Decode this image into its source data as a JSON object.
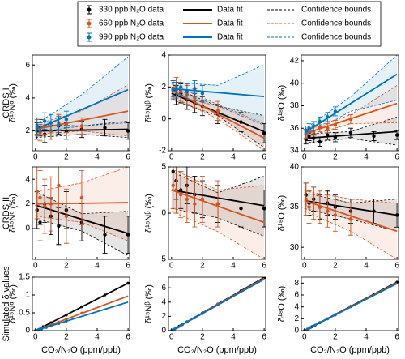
{
  "legend": [
    {
      "data_label": "330 ppb N₂O data",
      "fit_label": "Data fit",
      "bounds_label": "Confidence bounds",
      "color": "#000000"
    },
    {
      "data_label": "660 ppb N₂O data",
      "fit_label": "Data fit",
      "bounds_label": "Confidence bounds",
      "color": "#d95319"
    },
    {
      "data_label": "990 ppb N₂O data",
      "fit_label": "Data fit",
      "bounds_label": "Confidence bounds",
      "color": "#0072bd"
    }
  ],
  "row_labels": [
    "CRDS I",
    "CRDS II",
    "Simulated δ values"
  ],
  "chart_data": [
    {
      "type": "scatter",
      "ylabel": "δ¹⁵Nᵅ (‰)",
      "xlim": [
        -0.2,
        6.1
      ],
      "xticks": [
        0,
        2,
        4,
        6
      ],
      "ylim": [
        0.8,
        6.6
      ],
      "yticks": [
        2,
        4,
        6
      ],
      "fit_x": [
        0,
        6
      ],
      "band_x": [
        0,
        3,
        6
      ],
      "series": [
        {
          "color": "#000000",
          "x": [
            0.1,
            0.3,
            0.6,
            1,
            1.5,
            2,
            3,
            4.5,
            6
          ],
          "values": [
            2,
            2.2,
            1.8,
            2,
            2.3,
            2,
            2.1,
            2.2,
            2
          ],
          "errors": [
            0.5,
            0.5,
            0.5,
            0.5,
            0.5,
            0.5,
            0.5,
            0.5,
            0.5
          ],
          "fit_values": [
            2.0,
            2.1
          ],
          "band_lower": [
            1.6,
            1.8,
            1.6
          ],
          "band_upper": [
            2.4,
            2.3,
            2.6
          ]
        },
        {
          "color": "#d95319",
          "x": [
            0.1,
            0.3,
            0.6,
            1,
            1.5,
            2,
            3
          ],
          "values": [
            2.2,
            1.9,
            2.3,
            2,
            2.5,
            2.4,
            2.3
          ],
          "errors": [
            0.5,
            0.5,
            0.5,
            0.5,
            0.5,
            0.5,
            0.5
          ],
          "fit_values": [
            2.1,
            3.2
          ],
          "band_lower": [
            1.8,
            2.0,
            1.7
          ],
          "band_upper": [
            2.4,
            3.2,
            4.8
          ]
        },
        {
          "color": "#0072bd",
          "x": [
            0.1,
            0.3,
            0.6,
            1,
            1.5,
            2
          ],
          "values": [
            2.3,
            2.0,
            2.6,
            2.5,
            2.4,
            2.7
          ],
          "errors": [
            0.5,
            0.5,
            0.5,
            0.5,
            0.5,
            0.5
          ],
          "fit_values": [
            2.1,
            4.5
          ],
          "band_lower": [
            1.9,
            2.3,
            2.5
          ],
          "band_upper": [
            2.4,
            4.2,
            6.5
          ]
        }
      ]
    },
    {
      "type": "scatter",
      "ylabel": "δ¹⁵Nᵝ (‰)",
      "xlim": [
        -0.2,
        6.1
      ],
      "xticks": [
        0,
        2,
        4,
        6
      ],
      "ylim": [
        -2,
        4
      ],
      "yticks": [
        -2,
        0,
        2,
        4
      ],
      "fit_x": [
        0,
        6
      ],
      "band_x": [
        0,
        3,
        6
      ],
      "series": [
        {
          "color": "#000000",
          "x": [
            0.1,
            0.3,
            0.6,
            1,
            1.5,
            2,
            3,
            4.5,
            6
          ],
          "values": [
            1.8,
            1.5,
            1.6,
            1.2,
            1.0,
            0.8,
            0.3,
            -0.2,
            -0.9
          ],
          "errors": [
            0.6,
            0.6,
            0.6,
            0.6,
            0.6,
            0.6,
            0.6,
            0.6,
            0.6
          ],
          "fit_values": [
            1.6,
            -0.8
          ],
          "band_lower": [
            1.2,
            0.2,
            -1.8
          ],
          "band_upper": [
            2.0,
            0.8,
            0.2
          ]
        },
        {
          "color": "#d95319",
          "x": [
            0.1,
            0.3,
            0.6,
            1,
            1.5,
            2,
            3
          ],
          "values": [
            1.9,
            2.0,
            1.7,
            1.5,
            1.3,
            1.1,
            0.5
          ],
          "errors": [
            0.6,
            0.6,
            0.6,
            0.6,
            0.6,
            0.6,
            0.6
          ],
          "fit_values": [
            1.8,
            -1.2
          ],
          "band_lower": [
            1.4,
            0.0,
            -2.0
          ],
          "band_upper": [
            2.2,
            0.9,
            -0.3
          ]
        },
        {
          "color": "#0072bd",
          "x": [
            0.1,
            0.3,
            0.6,
            1,
            1.5,
            2
          ],
          "values": [
            1.9,
            1.8,
            2.0,
            1.7,
            1.9,
            1.6
          ],
          "errors": [
            0.5,
            0.5,
            0.5,
            0.5,
            0.5,
            0.5
          ],
          "fit_values": [
            1.9,
            1.4
          ],
          "band_lower": [
            1.5,
            0.8,
            -0.4
          ],
          "band_upper": [
            2.3,
            2.1,
            3.4
          ]
        }
      ]
    },
    {
      "type": "scatter",
      "ylabel": "δ¹⁸O (‰)",
      "xlim": [
        -0.2,
        6.1
      ],
      "xticks": [
        0,
        2,
        4,
        6
      ],
      "ylim": [
        34,
        42.5
      ],
      "yticks": [
        34,
        36,
        38,
        40,
        42
      ],
      "fit_x": [
        0,
        6
      ],
      "band_x": [
        0,
        3,
        6
      ],
      "series": [
        {
          "color": "#000000",
          "x": [
            0.1,
            0.3,
            0.6,
            1,
            1.5,
            2,
            3,
            4.5,
            6
          ],
          "values": [
            35,
            35.3,
            35.1,
            34.8,
            35.4,
            35.2,
            35.6,
            35.3,
            35.4
          ],
          "errors": [
            0.4,
            0.4,
            0.4,
            0.4,
            0.4,
            0.4,
            0.4,
            0.4,
            0.4
          ],
          "fit_values": [
            35.1,
            35.7
          ],
          "band_lower": [
            34.7,
            35.1,
            34.5
          ],
          "band_upper": [
            35.5,
            35.7,
            37.0
          ]
        },
        {
          "color": "#d95319",
          "x": [
            0.1,
            0.3,
            0.6,
            1,
            1.5,
            2,
            3
          ],
          "values": [
            35.5,
            35.8,
            35.7,
            36.1,
            36.0,
            36.3,
            36.8
          ],
          "errors": [
            0.4,
            0.4,
            0.4,
            0.4,
            0.4,
            0.4,
            0.4
          ],
          "fit_values": [
            35.5,
            38.2
          ],
          "band_lower": [
            35.2,
            36.4,
            36.5
          ],
          "band_upper": [
            35.8,
            37.2,
            39.8
          ]
        },
        {
          "color": "#0072bd",
          "x": [
            0.1,
            0.3,
            0.6,
            1,
            1.5,
            2
          ],
          "values": [
            35.8,
            36,
            36.2,
            36.6,
            37,
            37.5
          ],
          "errors": [
            0.4,
            0.4,
            0.4,
            0.4,
            0.4,
            0.4
          ],
          "fit_values": [
            35.6,
            40.8
          ],
          "band_lower": [
            35.3,
            37.5,
            38.5
          ],
          "band_upper": [
            35.9,
            38.8,
            42.5
          ]
        }
      ]
    },
    {
      "type": "scatter",
      "ylabel": "δ¹⁵Nᵅ (‰)",
      "xlim": [
        -0.2,
        6.1
      ],
      "xticks": [
        0,
        2,
        4,
        6
      ],
      "ylim": [
        -2.5,
        5
      ],
      "yticks": [
        0,
        2,
        4
      ],
      "fit_x": [
        0,
        6
      ],
      "band_x": [
        0,
        3,
        6
      ],
      "series": [
        {
          "color": "#000000",
          "x": [
            0.1,
            0.3,
            0.6,
            1,
            1.5,
            2,
            3,
            4.5,
            6
          ],
          "values": [
            1.5,
            0.5,
            2.0,
            1.0,
            0.2,
            1.5,
            0.5,
            -0.5,
            -0.5
          ],
          "errors": [
            1.5,
            1.5,
            1.5,
            1.5,
            1.5,
            1.5,
            1.5,
            1.5,
            1.5
          ],
          "fit_values": [
            1.9,
            -0.4
          ],
          "band_lower": [
            0.8,
            -0.2,
            -2.2
          ],
          "band_upper": [
            3.0,
            1.2,
            1.4
          ]
        },
        {
          "color": "#d95319",
          "x": [
            0.1,
            0.3,
            0.6,
            1,
            1.5,
            2,
            3
          ],
          "values": [
            3.0,
            2.5,
            1.8,
            2.0,
            3.5,
            1.0,
            2.5
          ],
          "errors": [
            2.2,
            2.2,
            2.2,
            2.2,
            2.2,
            2.2,
            2.2
          ],
          "fit_values": [
            2.0,
            2.1
          ],
          "band_lower": [
            1.0,
            0.5,
            -1.0
          ],
          "band_upper": [
            3.0,
            3.7,
            5.0
          ]
        }
      ]
    },
    {
      "type": "scatter",
      "ylabel": "δ¹⁵Nᵝ (‰)",
      "xlim": [
        -0.2,
        6.1
      ],
      "xticks": [
        0,
        2,
        4,
        6
      ],
      "ylim": [
        -5,
        5
      ],
      "yticks": [
        -5,
        0,
        5
      ],
      "fit_x": [
        0,
        6
      ],
      "band_x": [
        0,
        3,
        6
      ],
      "series": [
        {
          "color": "#000000",
          "x": [
            0.1,
            0.3,
            0.6,
            1,
            1.5,
            2,
            3,
            4.5,
            6
          ],
          "values": [
            4.5,
            3.5,
            2.5,
            3,
            2,
            1.5,
            1,
            0.5,
            0.5
          ],
          "errors": [
            2,
            2,
            2,
            2,
            2,
            2,
            2,
            2,
            2
          ],
          "fit_values": [
            2.5,
            0.8
          ],
          "band_lower": [
            0.5,
            -0.5,
            -2.5
          ],
          "band_upper": [
            4.5,
            2.2,
            4.0
          ]
        },
        {
          "color": "#d95319",
          "x": [
            0.1,
            0.3,
            0.6,
            1,
            1.5,
            2,
            3
          ],
          "values": [
            3,
            2.5,
            2,
            1.5,
            1,
            1.5,
            1
          ],
          "errors": [
            2.5,
            2.5,
            2.5,
            2.5,
            2.5,
            2.5,
            2.5
          ],
          "fit_values": [
            2.5,
            -1.0
          ],
          "band_lower": [
            0.2,
            -2.0,
            -5.0
          ],
          "band_upper": [
            4.8,
            2.5,
            3.0
          ]
        }
      ]
    },
    {
      "type": "scatter",
      "ylabel": "δ¹⁸O (‰)",
      "xlim": [
        -0.2,
        6.1
      ],
      "xticks": [
        0,
        2,
        4,
        6
      ],
      "ylim": [
        28.5,
        40
      ],
      "yticks": [
        30,
        35,
        40
      ],
      "fit_x": [
        0,
        6
      ],
      "band_x": [
        0,
        3,
        6
      ],
      "series": [
        {
          "color": "#000000",
          "x": [
            0.1,
            0.3,
            0.6,
            1,
            1.5,
            2,
            3,
            4.5,
            6
          ],
          "values": [
            36.5,
            35.5,
            36,
            35,
            35.5,
            35,
            34.5,
            34.5,
            34
          ],
          "errors": [
            1.5,
            1.5,
            1.5,
            1.5,
            1.5,
            1.5,
            1.5,
            1.5,
            1.5
          ],
          "fit_values": [
            35.8,
            34.0
          ],
          "band_lower": [
            34.8,
            33.5,
            32.0
          ],
          "band_upper": [
            36.8,
            35.5,
            36.0
          ]
        },
        {
          "color": "#d95319",
          "x": [
            0.1,
            0.3,
            0.6,
            1,
            1.5,
            2,
            3
          ],
          "values": [
            36,
            35,
            35.5,
            35,
            34.5,
            34,
            33.5
          ],
          "errors": [
            2,
            2,
            2,
            2,
            2,
            2,
            2
          ],
          "fit_values": [
            35.8,
            32.0
          ],
          "band_lower": [
            34.5,
            32.0,
            28.5
          ],
          "band_upper": [
            37.0,
            36.0,
            35.5
          ]
        }
      ]
    },
    {
      "type": "line",
      "ylabel": "δ¹⁵Nᵅ (‰)",
      "xlabel": "CO₂/N₂O (ppm/ppb)",
      "xlim": [
        -0.2,
        6.1
      ],
      "xticks": [
        0,
        2,
        4,
        6
      ],
      "ylim": [
        0,
        1.5
      ],
      "yticks": [
        0,
        0.5,
        1,
        1.5
      ],
      "fit_x": [
        0,
        6
      ],
      "series": [
        {
          "color": "#000000",
          "x": [
            0,
            0.5,
            1,
            2,
            3,
            4.5,
            6
          ],
          "values": [
            0,
            0.11,
            0.22,
            0.44,
            0.67,
            1.0,
            1.33
          ],
          "fit_values": [
            0,
            1.33
          ]
        },
        {
          "color": "#d95319",
          "x": [
            0,
            0.3,
            0.6,
            1,
            1.5,
            2,
            3
          ],
          "values": [
            0,
            0.05,
            0.1,
            0.16,
            0.24,
            0.32,
            0.49
          ],
          "fit_values": [
            0,
            0.97
          ]
        },
        {
          "color": "#0072bd",
          "x": [
            0,
            0.2,
            0.4,
            0.7,
            1,
            1.5,
            2
          ],
          "values": [
            0,
            0.03,
            0.05,
            0.09,
            0.13,
            0.2,
            0.27
          ],
          "fit_values": [
            0,
            0.8
          ]
        }
      ]
    },
    {
      "type": "line",
      "ylabel": "δ¹⁵Nᵝ (‰)",
      "xlabel": "CO₂/N₂O (ppm/ppb)",
      "xlim": [
        -0.2,
        6.1
      ],
      "xticks": [
        0,
        2,
        4,
        6
      ],
      "ylim": [
        0,
        7.5
      ],
      "yticks": [
        0,
        2,
        4,
        6
      ],
      "fit_x": [
        0,
        6
      ],
      "series": [
        {
          "color": "#000000",
          "x": [
            0,
            0.5,
            1,
            2,
            3,
            4.5,
            6
          ],
          "values": [
            0,
            0.62,
            1.24,
            2.48,
            3.72,
            5.58,
            7.44
          ],
          "fit_values": [
            0,
            7.44
          ]
        },
        {
          "color": "#d95319",
          "x": [
            0,
            0.3,
            0.6,
            1,
            1.5,
            2,
            3
          ],
          "values": [
            0,
            0.37,
            0.73,
            1.22,
            1.83,
            2.44,
            3.66
          ],
          "fit_values": [
            0,
            7.32
          ]
        },
        {
          "color": "#0072bd",
          "x": [
            0,
            0.2,
            0.4,
            0.7,
            1,
            1.5,
            2
          ],
          "values": [
            0,
            0.24,
            0.48,
            0.84,
            1.2,
            1.8,
            2.4
          ],
          "fit_values": [
            0,
            7.2
          ]
        }
      ]
    },
    {
      "type": "line",
      "ylabel": "δ¹⁸O (‰)",
      "xlabel": "CO₂/N₂O (ppm/ppb)",
      "xlim": [
        -0.2,
        6.1
      ],
      "xticks": [
        0,
        2,
        4,
        6
      ],
      "ylim": [
        0,
        9
      ],
      "yticks": [
        0,
        2,
        4,
        6,
        8
      ],
      "fit_x": [
        0,
        6
      ],
      "series": [
        {
          "color": "#000000",
          "x": [
            0,
            0.5,
            1,
            2,
            3,
            4.5,
            6
          ],
          "values": [
            0,
            0.68,
            1.36,
            2.72,
            4.08,
            6.12,
            8.16
          ],
          "fit_values": [
            0,
            8.16
          ]
        },
        {
          "color": "#d95319",
          "x": [
            0,
            0.3,
            0.6,
            1,
            1.5,
            2,
            3
          ],
          "values": [
            0,
            0.4,
            0.8,
            1.34,
            2.01,
            2.68,
            4.02
          ],
          "fit_values": [
            0,
            8.04
          ]
        },
        {
          "color": "#0072bd",
          "x": [
            0,
            0.2,
            0.4,
            0.7,
            1,
            1.5,
            2
          ],
          "values": [
            0,
            0.26,
            0.53,
            0.92,
            1.32,
            1.98,
            2.64
          ],
          "fit_values": [
            0,
            7.92
          ]
        }
      ]
    }
  ]
}
